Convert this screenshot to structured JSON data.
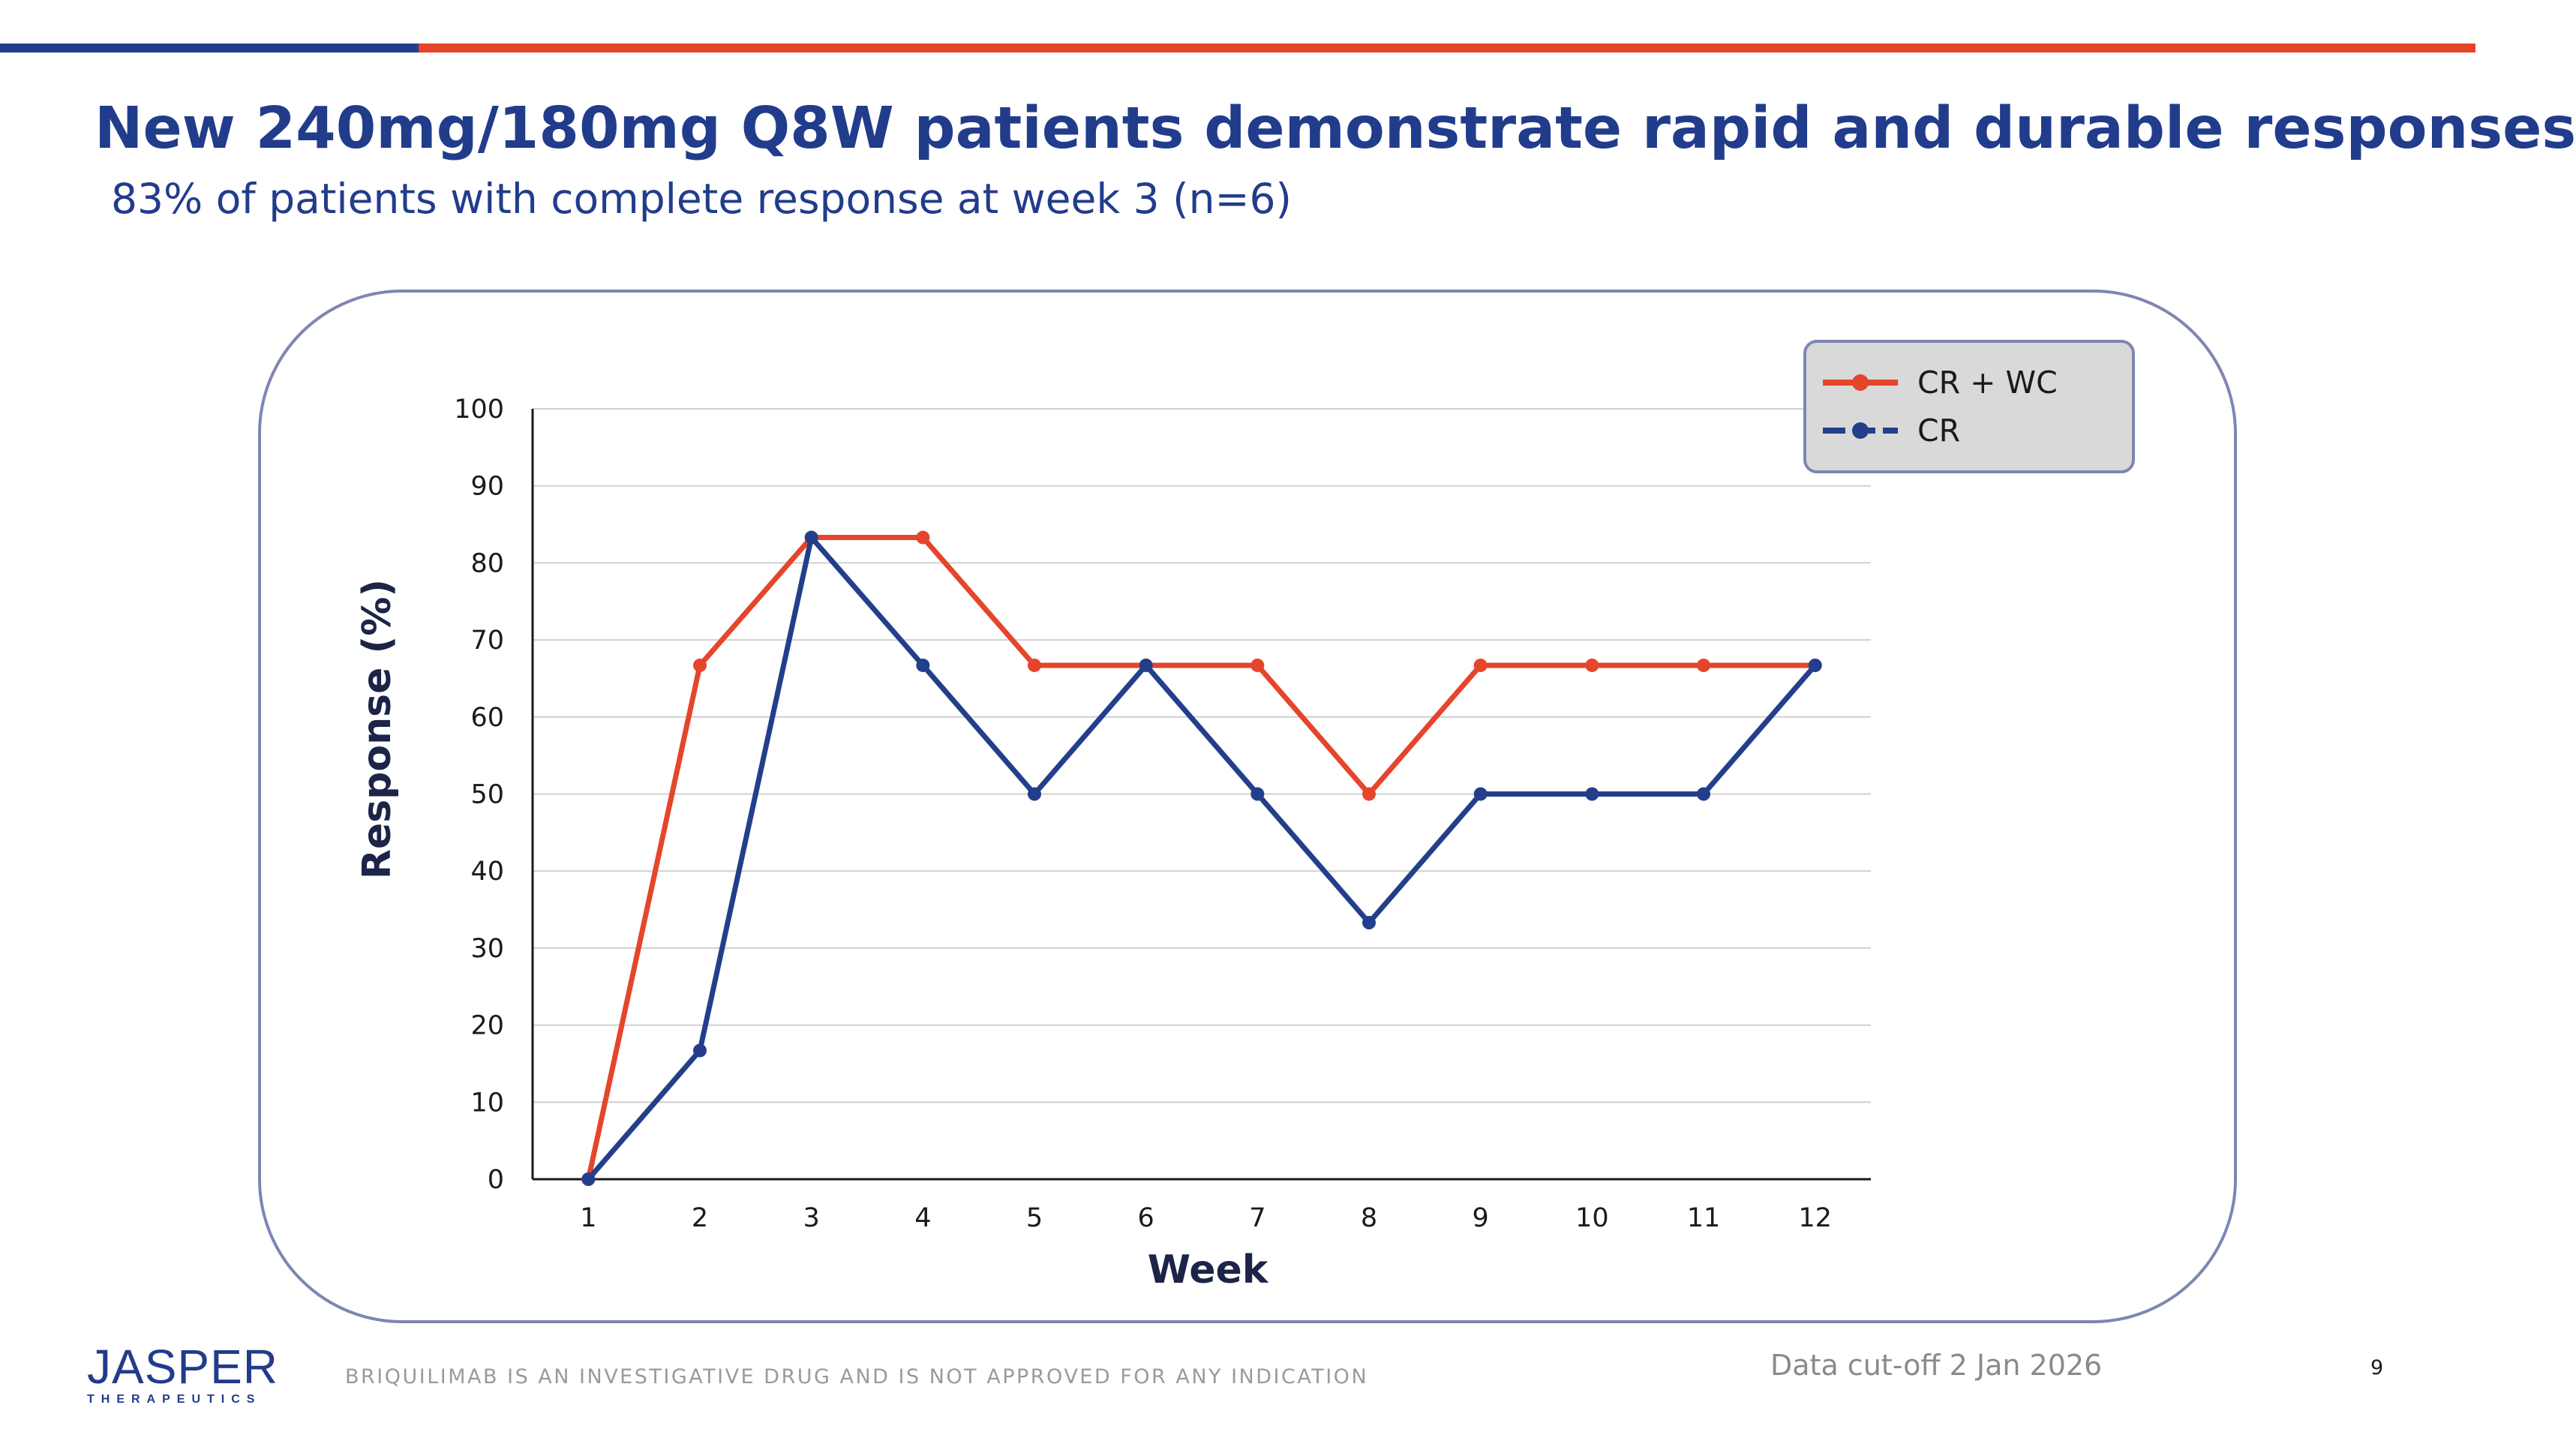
{
  "slide": {
    "title": "New 240mg/180mg Q8W patients demonstrate rapid and durable responses",
    "subtitle": "83% of patients with complete response at week 3 (n=6)",
    "footer_disclaimer": "BRIQUILIMAB IS AN INVESTIGATIVE DRUG AND IS NOT APPROVED FOR ANY INDICATION",
    "data_cutoff": "Data cut-off 2 Jan 2026",
    "page_number": "9",
    "logo_main": "JASPER",
    "logo_sub": "THERAPEUTICS"
  },
  "colors": {
    "brand_blue": "#223c8c",
    "accent_orange": "#e5452b",
    "legend_bg": "#d9d9d9"
  },
  "chart_data": {
    "type": "line",
    "xlabel": "Week",
    "ylabel": "Response (%)",
    "ylim": [
      0,
      100
    ],
    "yticks": [
      0,
      10,
      20,
      30,
      40,
      50,
      60,
      70,
      80,
      90,
      100
    ],
    "categories": [
      "1",
      "2",
      "3",
      "4",
      "5",
      "6",
      "7",
      "8",
      "9",
      "10",
      "11",
      "12"
    ],
    "grid": true,
    "legend_position": "top-right",
    "series": [
      {
        "name": "CR + WC",
        "color": "#e5452b",
        "values": [
          0,
          66.7,
          83.3,
          83.3,
          66.7,
          66.7,
          66.7,
          50,
          66.7,
          66.7,
          66.7,
          66.7
        ]
      },
      {
        "name": "CR",
        "color": "#233f8b",
        "values": [
          0,
          16.7,
          83.3,
          66.7,
          50,
          66.7,
          50,
          33.3,
          50,
          50,
          50,
          66.7
        ]
      }
    ]
  }
}
